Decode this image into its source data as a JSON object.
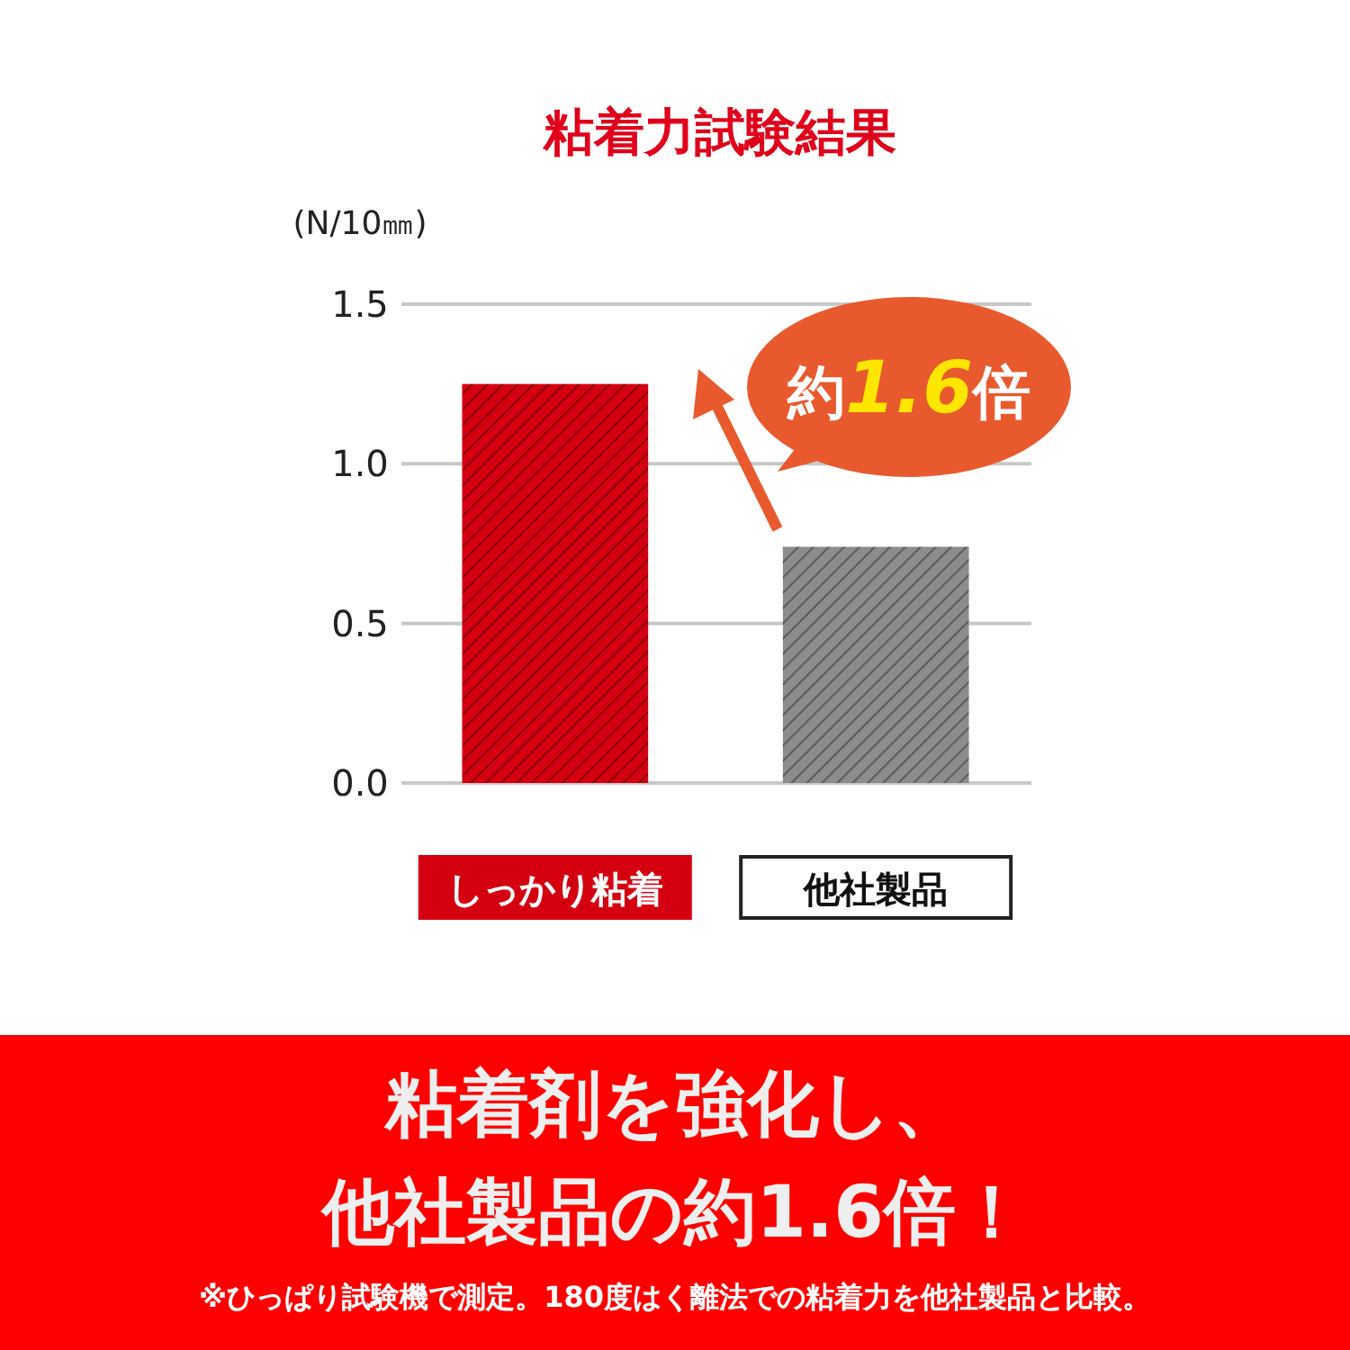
{
  "chart_data": {
    "type": "bar",
    "title": "粘着力試験結果",
    "ylabel": "(N/10㎜)",
    "categories": [
      "しっかり粘着",
      "他社製品"
    ],
    "values": [
      1.25,
      0.74
    ],
    "colors": [
      "#d40010",
      "#8c8c8c"
    ],
    "ylim": [
      0,
      1.5
    ],
    "yticks": [
      {
        "value": 0,
        "label": "0.0"
      },
      {
        "value": 0.5,
        "label": "0.5"
      },
      {
        "value": 1,
        "label": "1.0"
      },
      {
        "value": 1.5,
        "label": "1.5"
      }
    ],
    "grid": "y",
    "annotations": [
      "約1.6倍",
      "粘着剤を強化し、",
      "他社製品の約1.6倍！",
      "※ひっぱり試験機で測定。180度はく離法での粘着力を他社製品と比較。"
    ]
  }
}
